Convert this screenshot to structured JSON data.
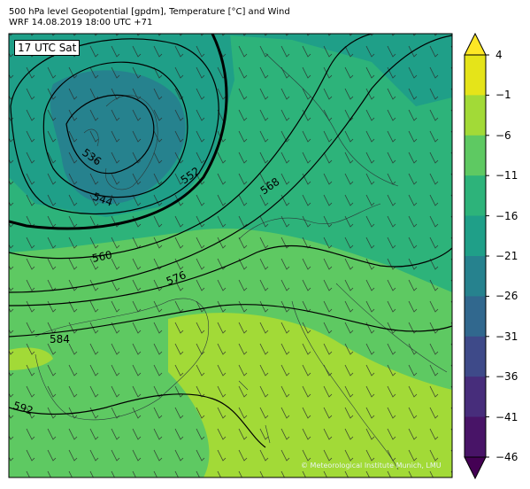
{
  "header": {
    "title_line1": "500 hPa level Geopotential [gpdm], Temperature [°C] and Wind",
    "title_line2": "WRF 14.08.2019 18:00 UTC +71"
  },
  "map": {
    "valid_time": "17 UTC Sat",
    "copyright": "© Meteorological Institute Munich, LMU",
    "contour_labels": [
      "536",
      "544",
      "552",
      "560",
      "568",
      "576",
      "584",
      "592"
    ]
  },
  "colorbar": {
    "ticks": [
      "4",
      "−1",
      "−6",
      "−11",
      "−16",
      "−21",
      "−26",
      "−31",
      "−36",
      "−41",
      "−46"
    ],
    "colors": [
      "#e5e419",
      "#a2da37",
      "#5ec962",
      "#2db37a",
      "#1f9f88",
      "#26828e",
      "#31688e",
      "#3e4a89",
      "#472d7b",
      "#481467",
      "#440154"
    ],
    "top_color": "#fde725",
    "bottom_color": "#440154"
  },
  "chart_data": {
    "type": "map",
    "title": "500 hPa level Geopotential [gpdm], Temperature [°C] and Wind",
    "subtitle": "WRF 14.08.2019 18:00 UTC +71",
    "colorbar_range": [
      -46,
      4
    ],
    "colorbar_ticks": [
      4,
      -1,
      -6,
      -11,
      -16,
      -21,
      -26,
      -31,
      -36,
      -41,
      -46
    ],
    "geopotential_contours_gpdm": [
      536,
      544,
      552,
      560,
      568,
      576,
      584,
      592
    ]
  }
}
